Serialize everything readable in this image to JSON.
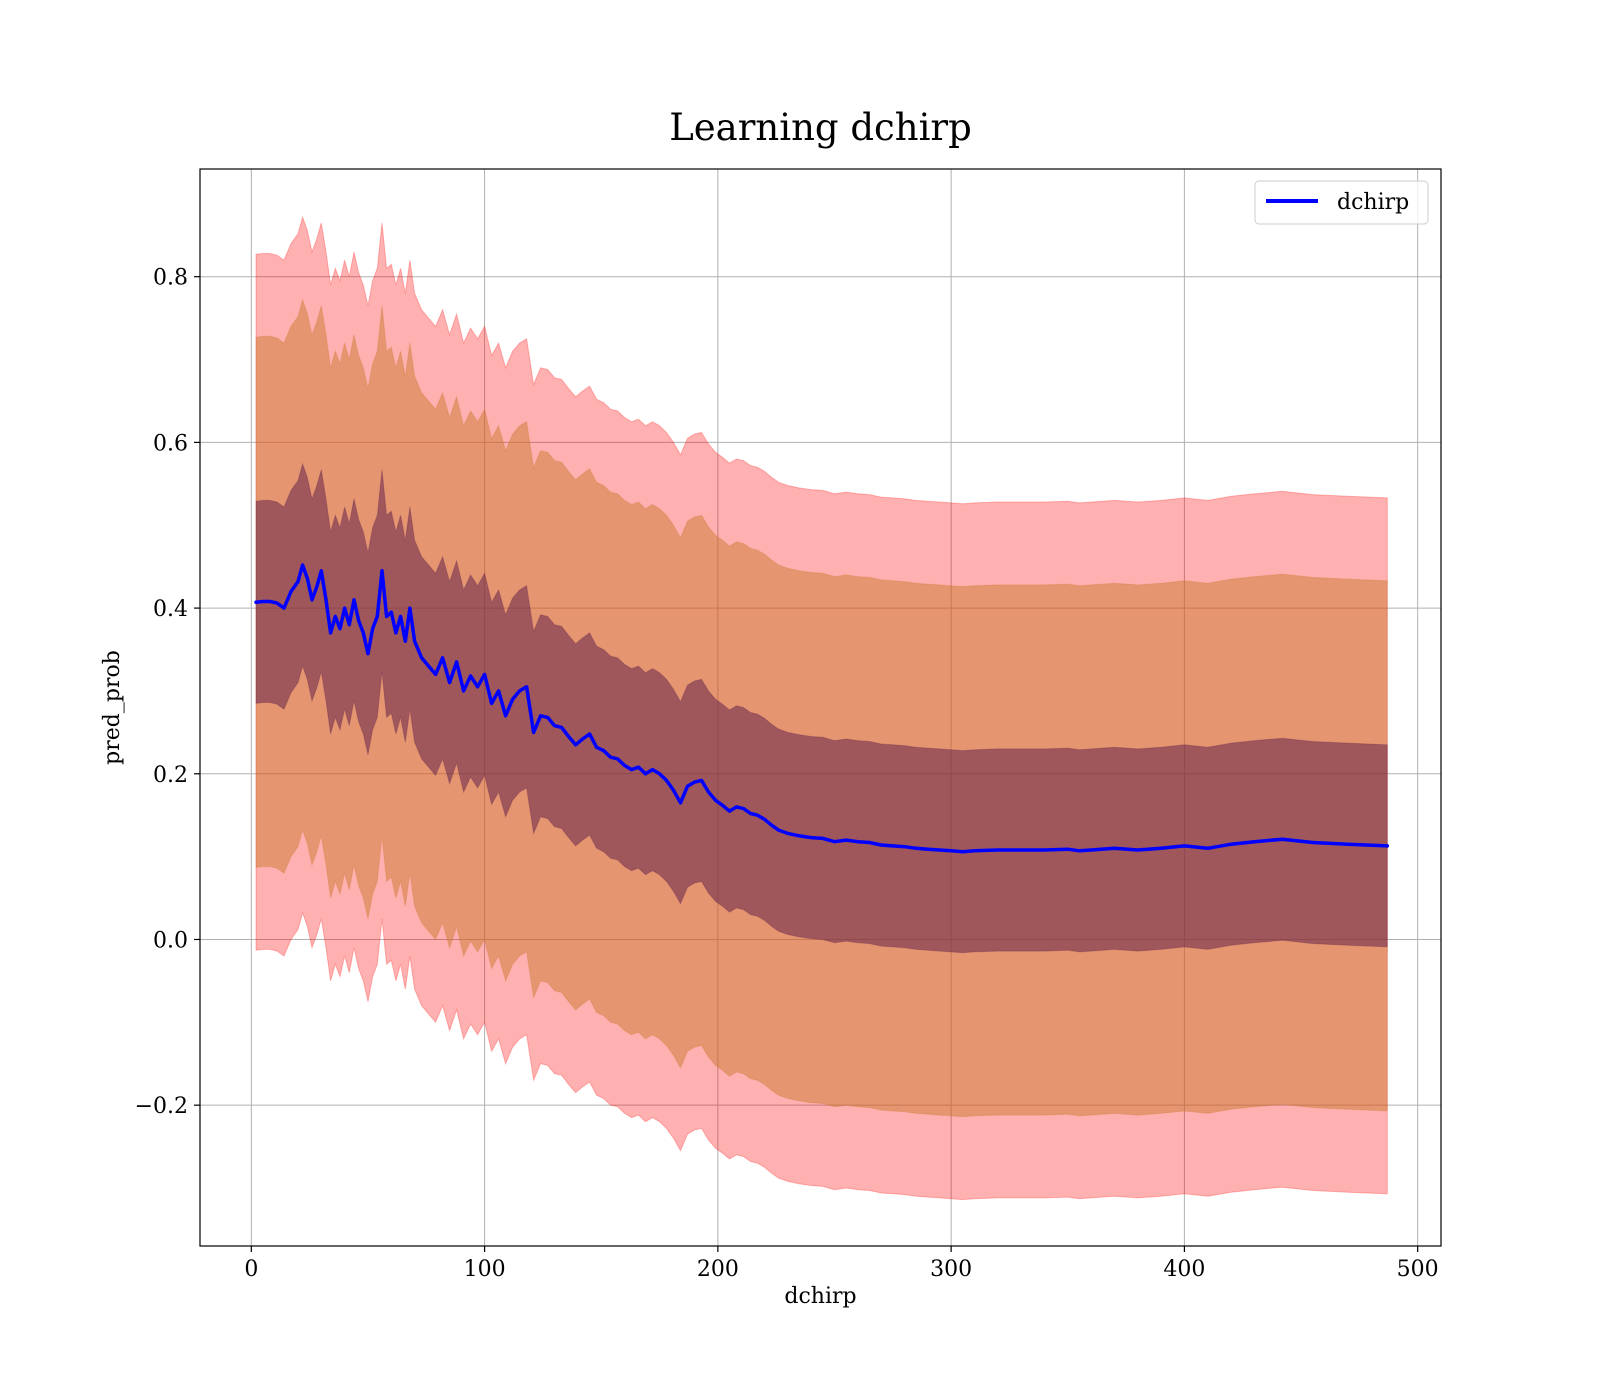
{
  "chart_data": {
    "type": "line",
    "title": "Learning dchirp",
    "xlabel": "dchirp",
    "ylabel": "pred_prob",
    "xlim": [
      -22,
      510
    ],
    "ylim": [
      -0.37,
      0.93
    ],
    "xticks": [
      0,
      100,
      200,
      300,
      400,
      500
    ],
    "xtick_labels": [
      "0",
      "100",
      "200",
      "300",
      "400",
      "500"
    ],
    "yticks": [
      -0.2,
      0.0,
      0.2,
      0.4,
      0.6,
      0.8
    ],
    "ytick_labels": [
      "−0.2",
      "0.0",
      "0.2",
      "0.4",
      "0.6",
      "0.8"
    ],
    "grid": true,
    "legend": {
      "placement": "upper right",
      "entries": [
        "dchirp"
      ]
    },
    "band_widths": [
      0.42,
      0.32,
      0.122
    ],
    "band_colors": [
      "#ff0000",
      "#c87828",
      "#5a1a4a"
    ],
    "band_alphas": [
      0.31,
      0.48,
      0.5
    ],
    "line_color": "#0000ff",
    "series": [
      {
        "name": "dchirp",
        "x": [
          2,
          5,
          8,
          11,
          14,
          17,
          20,
          22,
          24,
          26,
          28,
          30,
          32,
          34,
          36,
          38,
          40,
          42,
          44,
          46,
          48,
          50,
          52,
          54,
          56,
          58,
          60,
          62,
          64,
          66,
          68,
          70,
          73,
          76,
          79,
          82,
          85,
          88,
          91,
          94,
          97,
          100,
          103,
          106,
          109,
          112,
          115,
          118,
          121,
          124,
          127,
          130,
          133,
          136,
          139,
          142,
          145,
          148,
          151,
          154,
          157,
          160,
          163,
          166,
          169,
          172,
          175,
          178,
          181,
          184,
          187,
          190,
          193,
          196,
          199,
          202,
          205,
          208,
          211,
          214,
          217,
          220,
          223,
          226,
          230,
          235,
          240,
          245,
          250,
          255,
          260,
          265,
          270,
          275,
          280,
          285,
          290,
          295,
          300,
          305,
          310,
          320,
          330,
          340,
          350,
          355,
          360,
          370,
          380,
          390,
          400,
          410,
          420,
          430,
          442,
          455,
          470,
          487
        ],
        "values": [
          0.407,
          0.408,
          0.408,
          0.406,
          0.4,
          0.42,
          0.432,
          0.452,
          0.436,
          0.41,
          0.425,
          0.445,
          0.41,
          0.37,
          0.39,
          0.375,
          0.4,
          0.38,
          0.41,
          0.385,
          0.37,
          0.345,
          0.375,
          0.39,
          0.445,
          0.39,
          0.395,
          0.37,
          0.39,
          0.36,
          0.4,
          0.36,
          0.34,
          0.33,
          0.32,
          0.34,
          0.31,
          0.335,
          0.3,
          0.318,
          0.305,
          0.32,
          0.285,
          0.3,
          0.27,
          0.29,
          0.3,
          0.305,
          0.25,
          0.27,
          0.268,
          0.258,
          0.256,
          0.245,
          0.235,
          0.242,
          0.248,
          0.232,
          0.228,
          0.22,
          0.218,
          0.21,
          0.205,
          0.208,
          0.2,
          0.205,
          0.2,
          0.192,
          0.18,
          0.165,
          0.185,
          0.19,
          0.192,
          0.178,
          0.168,
          0.162,
          0.155,
          0.16,
          0.158,
          0.152,
          0.15,
          0.145,
          0.138,
          0.132,
          0.128,
          0.125,
          0.123,
          0.122,
          0.118,
          0.12,
          0.118,
          0.117,
          0.114,
          0.113,
          0.112,
          0.11,
          0.109,
          0.108,
          0.107,
          0.106,
          0.107,
          0.108,
          0.108,
          0.108,
          0.109,
          0.107,
          0.108,
          0.11,
          0.108,
          0.11,
          0.113,
          0.11,
          0.115,
          0.118,
          0.121,
          0.117,
          0.115,
          0.113
        ]
      }
    ]
  }
}
